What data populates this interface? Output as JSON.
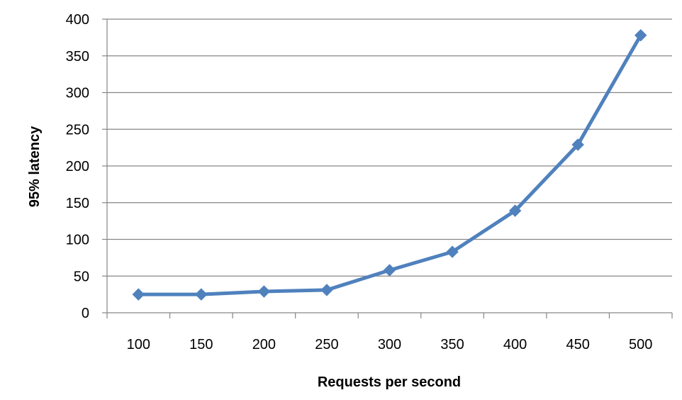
{
  "chart_data": {
    "type": "line",
    "title": "",
    "xlabel": "Requests per second",
    "ylabel": "95% latency",
    "categories": [
      "100",
      "150",
      "200",
      "250",
      "300",
      "350",
      "400",
      "450",
      "500"
    ],
    "series": [
      {
        "values": [
          25,
          25,
          29,
          31,
          58,
          83,
          139,
          229,
          378
        ]
      }
    ],
    "ylim": [
      0,
      400
    ],
    "yticks": [
      0,
      50,
      100,
      150,
      200,
      250,
      300,
      350,
      400
    ],
    "grid": "horizontal",
    "legend": "none",
    "colors": {
      "line": "#4f81bd",
      "marker": "#4f81bd",
      "grid": "#868686",
      "axis": "#868686"
    },
    "marker": "diamond"
  }
}
